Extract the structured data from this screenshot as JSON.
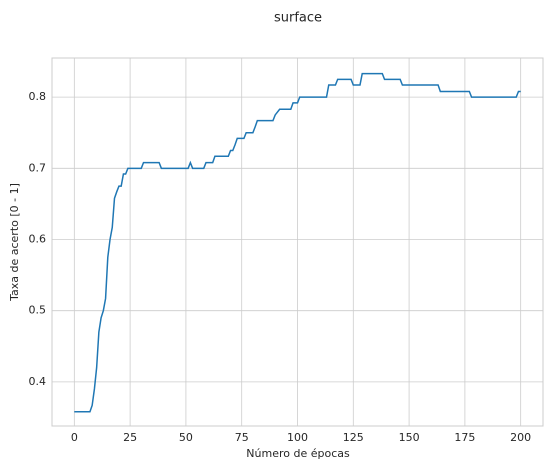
{
  "chart_data": {
    "type": "line",
    "title": "surface",
    "x_label": "Número de épocas",
    "y_label": "Taxa de acerto [0 - 1]",
    "x": [
      0,
      7,
      8,
      9,
      10,
      11,
      12,
      13,
      14,
      15,
      16,
      17,
      18,
      19,
      20,
      21,
      22,
      23,
      24,
      30,
      31,
      38,
      39,
      51,
      52,
      53,
      58,
      59,
      62,
      63,
      69,
      70,
      71,
      72,
      73,
      76,
      77,
      80,
      81,
      82,
      89,
      90,
      92,
      97,
      98,
      100,
      101,
      113,
      114,
      117,
      118,
      124,
      125,
      128,
      129,
      138,
      139,
      146,
      147,
      163,
      164,
      177,
      178,
      198,
      199,
      200
    ],
    "series": [
      {
        "name": "surface",
        "color": "#1f77b4",
        "values": [
          0.358,
          0.358,
          0.367,
          0.39,
          0.42,
          0.47,
          0.49,
          0.5,
          0.517,
          0.575,
          0.6,
          0.617,
          0.658,
          0.667,
          0.675,
          0.675,
          0.692,
          0.692,
          0.7,
          0.7,
          0.708,
          0.708,
          0.7,
          0.7,
          0.708,
          0.7,
          0.7,
          0.708,
          0.708,
          0.717,
          0.717,
          0.725,
          0.725,
          0.733,
          0.742,
          0.742,
          0.75,
          0.75,
          0.758,
          0.767,
          0.767,
          0.775,
          0.783,
          0.783,
          0.792,
          0.792,
          0.8,
          0.8,
          0.817,
          0.817,
          0.825,
          0.825,
          0.817,
          0.817,
          0.833,
          0.833,
          0.825,
          0.825,
          0.817,
          0.817,
          0.808,
          0.808,
          0.8,
          0.8,
          0.808,
          0.808
        ]
      }
    ],
    "xlim": [
      -10,
      210
    ],
    "xticks": [
      0,
      25,
      50,
      75,
      100,
      125,
      150,
      175,
      200
    ],
    "ylim": [
      0.338,
      0.855
    ],
    "yticks": [
      0.4,
      0.5,
      0.6,
      0.7,
      0.8
    ],
    "grid": true
  }
}
